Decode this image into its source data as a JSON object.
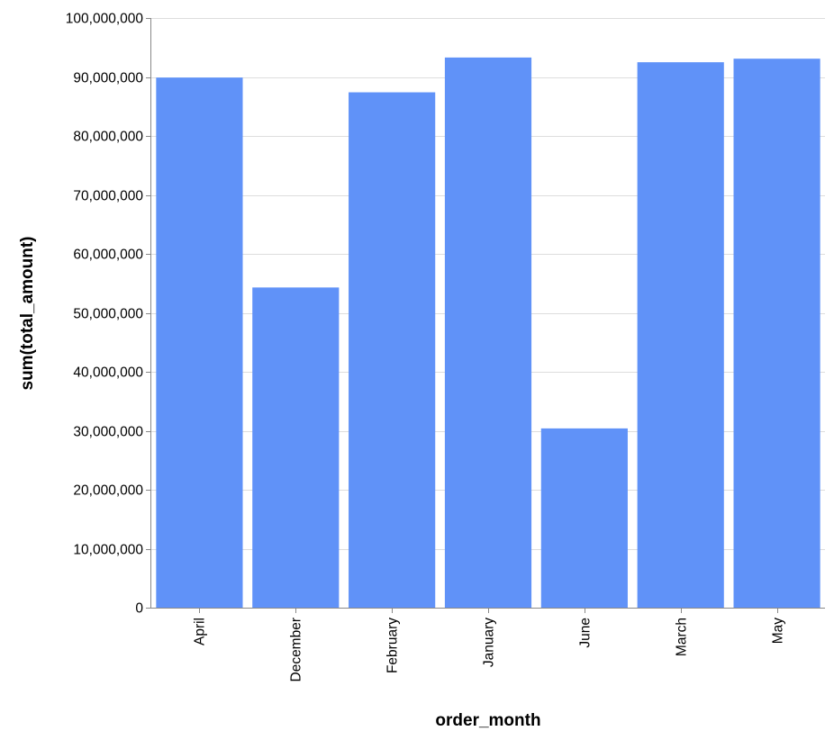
{
  "chart_data": {
    "type": "bar",
    "categories": [
      "April",
      "December",
      "February",
      "January",
      "June",
      "March",
      "May"
    ],
    "values": [
      89900000,
      54300000,
      87400000,
      93300000,
      30400000,
      92500000,
      93100000
    ],
    "xlabel": "order_month",
    "ylabel": "sum(total_amount)",
    "ylim": [
      0,
      100000000
    ],
    "yticks": [
      0,
      10000000,
      20000000,
      30000000,
      40000000,
      50000000,
      60000000,
      70000000,
      80000000,
      90000000,
      100000000
    ],
    "ytick_labels": [
      "0",
      "10,000,000",
      "20,000,000",
      "30,000,000",
      "40,000,000",
      "50,000,000",
      "60,000,000",
      "70,000,000",
      "80,000,000",
      "90,000,000",
      "100,000,000"
    ],
    "grid": true,
    "bar_color": "#6092f8"
  }
}
